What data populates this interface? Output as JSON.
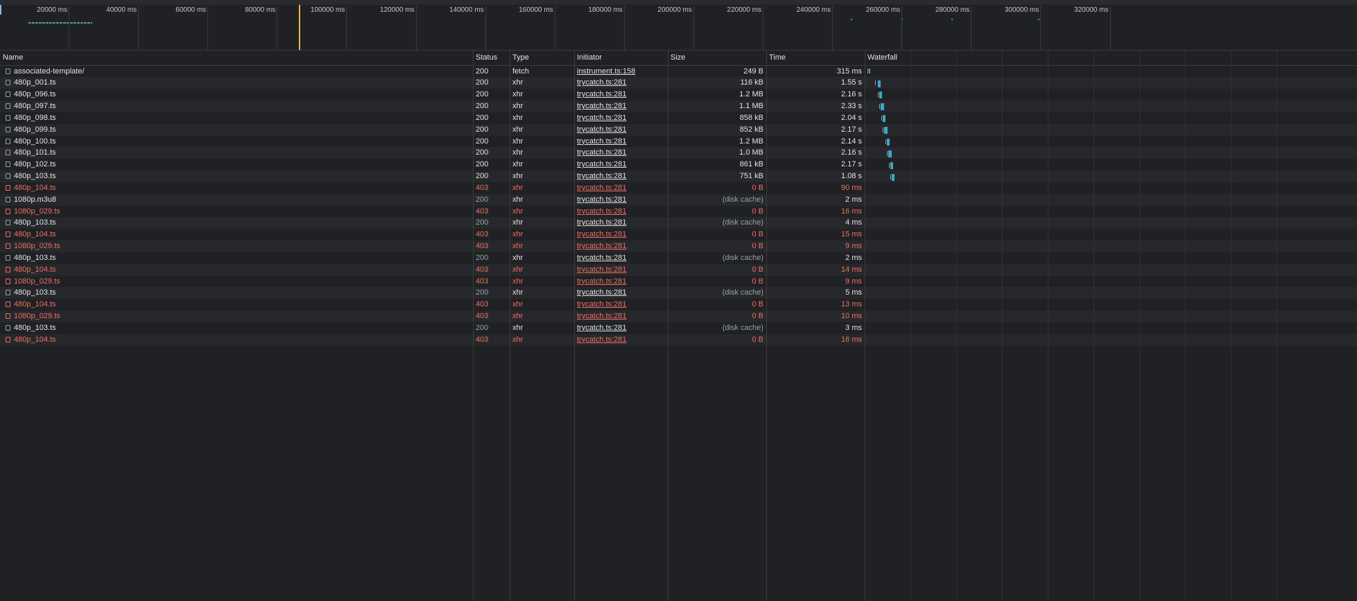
{
  "overview": {
    "ticks": [
      "20000 ms",
      "40000 ms",
      "60000 ms",
      "80000 ms",
      "100000 ms",
      "120000 ms",
      "140000 ms",
      "160000 ms",
      "180000 ms",
      "200000 ms",
      "220000 ms",
      "240000 ms",
      "260000 ms",
      "280000 ms",
      "300000 ms",
      "320000 ms"
    ]
  },
  "table": {
    "columns": [
      "Name",
      "Status",
      "Type",
      "Initiator",
      "Size",
      "Time",
      "Waterfall"
    ],
    "rows": [
      {
        "name": "associated-template/",
        "status": "200",
        "type": "fetch",
        "initiator": "instrument.ts:158",
        "size": "249 B",
        "time": "315 ms"
      },
      {
        "name": "480p_001.ts",
        "status": "200",
        "type": "xhr",
        "initiator": "trycatch.ts:281",
        "size": "116 kB",
        "time": "1.55 s"
      },
      {
        "name": "480p_096.ts",
        "status": "200",
        "type": "xhr",
        "initiator": "trycatch.ts:281",
        "size": "1.2 MB",
        "time": "2.16 s"
      },
      {
        "name": "480p_097.ts",
        "status": "200",
        "type": "xhr",
        "initiator": "trycatch.ts:281",
        "size": "1.1 MB",
        "time": "2.33 s"
      },
      {
        "name": "480p_098.ts",
        "status": "200",
        "type": "xhr",
        "initiator": "trycatch.ts:281",
        "size": "858 kB",
        "time": "2.04 s"
      },
      {
        "name": "480p_099.ts",
        "status": "200",
        "type": "xhr",
        "initiator": "trycatch.ts:281",
        "size": "852 kB",
        "time": "2.17 s"
      },
      {
        "name": "480p_100.ts",
        "status": "200",
        "type": "xhr",
        "initiator": "trycatch.ts:281",
        "size": "1.2 MB",
        "time": "2.14 s"
      },
      {
        "name": "480p_101.ts",
        "status": "200",
        "type": "xhr",
        "initiator": "trycatch.ts:281",
        "size": "1.0 MB",
        "time": "2.16 s"
      },
      {
        "name": "480p_102.ts",
        "status": "200",
        "type": "xhr",
        "initiator": "trycatch.ts:281",
        "size": "861 kB",
        "time": "2.17 s"
      },
      {
        "name": "480p_103.ts",
        "status": "200",
        "type": "xhr",
        "initiator": "trycatch.ts:281",
        "size": "751 kB",
        "time": "1.08 s"
      },
      {
        "name": "480p_104.ts",
        "status": "403",
        "type": "xhr",
        "initiator": "trycatch.ts:281",
        "size": "0 B",
        "time": "90 ms"
      },
      {
        "name": "1080p.m3u8",
        "status": "200",
        "type": "xhr",
        "initiator": "trycatch.ts:281",
        "size": "(disk cache)",
        "time": "2 ms"
      },
      {
        "name": "1080p_029.ts",
        "status": "403",
        "type": "xhr",
        "initiator": "trycatch.ts:281",
        "size": "0 B",
        "time": "16 ms"
      },
      {
        "name": "480p_103.ts",
        "status": "200",
        "type": "xhr",
        "initiator": "trycatch.ts:281",
        "size": "(disk cache)",
        "time": "4 ms"
      },
      {
        "name": "480p_104.ts",
        "status": "403",
        "type": "xhr",
        "initiator": "trycatch.ts:281",
        "size": "0 B",
        "time": "15 ms"
      },
      {
        "name": "1080p_029.ts",
        "status": "403",
        "type": "xhr",
        "initiator": "trycatch.ts:281",
        "size": "0 B",
        "time": "9 ms"
      },
      {
        "name": "480p_103.ts",
        "status": "200",
        "type": "xhr",
        "initiator": "trycatch.ts:281",
        "size": "(disk cache)",
        "time": "2 ms"
      },
      {
        "name": "480p_104.ts",
        "status": "403",
        "type": "xhr",
        "initiator": "trycatch.ts:281",
        "size": "0 B",
        "time": "14 ms"
      },
      {
        "name": "1080p_029.ts",
        "status": "403",
        "type": "xhr",
        "initiator": "trycatch.ts:281",
        "size": "0 B",
        "time": "9 ms"
      },
      {
        "name": "480p_103.ts",
        "status": "200",
        "type": "xhr",
        "initiator": "trycatch.ts:281",
        "size": "(disk cache)",
        "time": "5 ms"
      },
      {
        "name": "480p_104.ts",
        "status": "403",
        "type": "xhr",
        "initiator": "trycatch.ts:281",
        "size": "0 B",
        "time": "13 ms"
      },
      {
        "name": "1080p_029.ts",
        "status": "403",
        "type": "xhr",
        "initiator": "trycatch.ts:281",
        "size": "0 B",
        "time": "10 ms"
      },
      {
        "name": "480p_103.ts",
        "status": "200",
        "type": "xhr",
        "initiator": "trycatch.ts:281",
        "size": "(disk cache)",
        "time": "3 ms"
      },
      {
        "name": "480p_104.ts",
        "status": "403",
        "type": "xhr",
        "initiator": "trycatch.ts:281",
        "size": "0 B",
        "time": "16 ms"
      }
    ]
  }
}
